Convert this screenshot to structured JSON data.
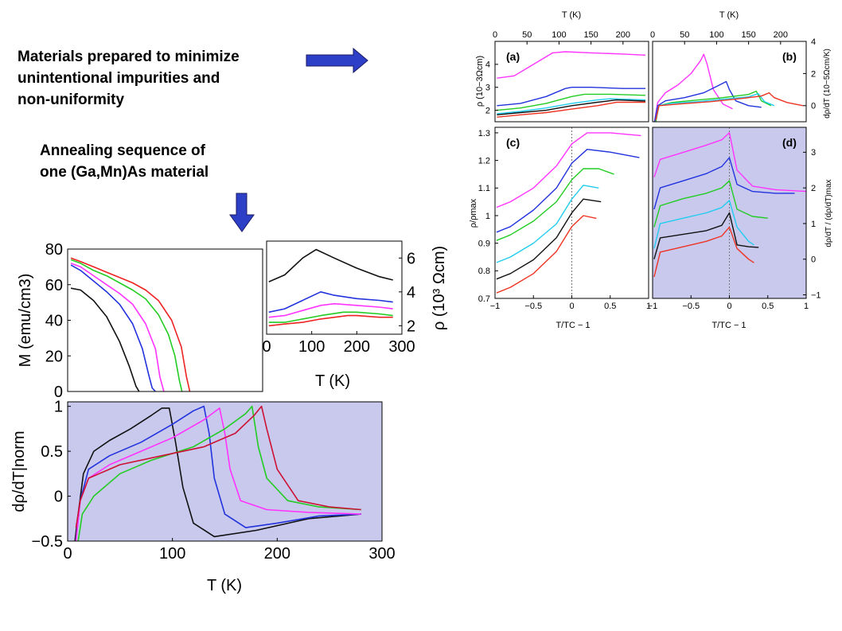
{
  "captions": {
    "top": [
      "Materials prepared to minimize",
      "unintentional impurities and",
      "non-uniformity"
    ],
    "middle": [
      "Annealing sequence of",
      "one (Ga,Mn)As material"
    ]
  },
  "colors": {
    "arrow": "#2e3fc7",
    "arrow_edge": "#1a1a66",
    "shade": "#c9c9ee"
  },
  "chart_data": [
    {
      "id": "magnetization",
      "type": "line",
      "ylabel": "M (emu/cm3)",
      "xlim": [
        0,
        300
      ],
      "ylim": [
        0,
        80
      ],
      "yticks": [
        "0",
        "20",
        "40",
        "60",
        "80"
      ],
      "series": [
        {
          "color": "#111111",
          "x": [
            5,
            20,
            40,
            60,
            80,
            95,
            105,
            110
          ],
          "y": [
            58,
            57,
            51,
            42,
            28,
            14,
            3,
            0
          ]
        },
        {
          "color": "#2233dd",
          "x": [
            5,
            20,
            40,
            60,
            80,
            100,
            115,
            125,
            130,
            135
          ],
          "y": [
            71,
            68,
            62,
            56,
            49,
            38,
            24,
            9,
            2,
            0
          ]
        },
        {
          "color": "#ff33ff",
          "x": [
            5,
            20,
            40,
            60,
            80,
            100,
            120,
            135,
            142,
            148
          ],
          "y": [
            72,
            70,
            65,
            60,
            55,
            49,
            38,
            24,
            8,
            0
          ]
        },
        {
          "color": "#22cc22",
          "x": [
            5,
            20,
            40,
            60,
            80,
            100,
            120,
            140,
            155,
            165,
            172,
            176
          ],
          "y": [
            74,
            72,
            68,
            65,
            61,
            57,
            52,
            43,
            32,
            20,
            6,
            0
          ]
        },
        {
          "color": "#ee2222",
          "x": [
            5,
            20,
            40,
            60,
            80,
            100,
            120,
            140,
            160,
            175,
            183,
            188
          ],
          "y": [
            75,
            73,
            70,
            67,
            64,
            61,
            57,
            51,
            40,
            25,
            8,
            0
          ]
        }
      ]
    },
    {
      "id": "inset-resistivity",
      "type": "line",
      "xlabel": "T (K)",
      "ylabel": "ρ (10³ Ωcm)",
      "xlim": [
        0,
        300
      ],
      "ylim": [
        1.5,
        7
      ],
      "xticks": [
        "0",
        "100",
        "200",
        "300"
      ],
      "yticks": [
        "2",
        "4",
        "6"
      ],
      "series": [
        {
          "color": "#111111",
          "x": [
            5,
            40,
            80,
            110,
            150,
            200,
            250,
            280
          ],
          "y": [
            4.6,
            5.0,
            6.0,
            6.5,
            6.0,
            5.4,
            4.9,
            4.7
          ]
        },
        {
          "color": "#2233dd",
          "x": [
            5,
            40,
            80,
            120,
            150,
            200,
            250,
            280
          ],
          "y": [
            2.8,
            3.0,
            3.5,
            4.0,
            3.8,
            3.6,
            3.5,
            3.4
          ]
        },
        {
          "color": "#ff33ff",
          "x": [
            5,
            40,
            80,
            120,
            150,
            200,
            250,
            280
          ],
          "y": [
            2.5,
            2.6,
            2.9,
            3.2,
            3.3,
            3.2,
            3.1,
            3.0
          ]
        },
        {
          "color": "#22cc22",
          "x": [
            5,
            40,
            80,
            120,
            170,
            200,
            250,
            280
          ],
          "y": [
            2.2,
            2.2,
            2.4,
            2.6,
            2.8,
            2.8,
            2.7,
            2.6
          ]
        },
        {
          "color": "#ee2222",
          "x": [
            5,
            40,
            80,
            120,
            180,
            200,
            250,
            280
          ],
          "y": [
            2.0,
            2.1,
            2.2,
            2.4,
            2.6,
            2.6,
            2.5,
            2.5
          ]
        }
      ]
    },
    {
      "id": "drho-dt-norm",
      "type": "line",
      "xlabel": "T (K)",
      "ylabel": "dρ/dT|norm",
      "xlim": [
        0,
        300
      ],
      "ylim": [
        -0.5,
        1.05
      ],
      "xticks": [
        "0",
        "100",
        "200",
        "300"
      ],
      "yticks": [
        "−0.5",
        "0",
        "0.5",
        "1"
      ],
      "series": [
        {
          "color": "#111111",
          "x": [
            7,
            10,
            15,
            25,
            40,
            60,
            80,
            90,
            97,
            103,
            110,
            120,
            140,
            180,
            230,
            280
          ],
          "y": [
            -0.5,
            -0.2,
            0.25,
            0.5,
            0.62,
            0.75,
            0.9,
            0.98,
            0.98,
            0.6,
            0.1,
            -0.3,
            -0.45,
            -0.38,
            -0.25,
            -0.2
          ]
        },
        {
          "color": "#2233dd",
          "x": [
            8,
            12,
            20,
            40,
            70,
            100,
            120,
            130,
            135,
            140,
            150,
            170,
            200,
            240,
            280
          ],
          "y": [
            -0.5,
            -0.05,
            0.3,
            0.45,
            0.6,
            0.8,
            0.95,
            1.0,
            0.7,
            0.2,
            -0.2,
            -0.35,
            -0.3,
            -0.22,
            -0.2
          ]
        },
        {
          "color": "#ff33ff",
          "x": [
            8,
            12,
            20,
            40,
            70,
            100,
            130,
            145,
            150,
            155,
            165,
            190,
            230,
            280
          ],
          "y": [
            -0.5,
            -0.05,
            0.2,
            0.35,
            0.5,
            0.65,
            0.85,
            0.98,
            0.7,
            0.3,
            -0.05,
            -0.15,
            -0.18,
            -0.2
          ]
        },
        {
          "color": "#22cc22",
          "x": [
            10,
            14,
            25,
            50,
            80,
            120,
            150,
            170,
            176,
            182,
            190,
            210,
            240,
            280
          ],
          "y": [
            -0.5,
            -0.2,
            0.0,
            0.25,
            0.4,
            0.55,
            0.75,
            0.92,
            1.0,
            0.55,
            0.2,
            -0.05,
            -0.12,
            -0.15
          ]
        },
        {
          "color": "#cc1133",
          "x": [
            8,
            12,
            20,
            50,
            90,
            130,
            160,
            178,
            185,
            190,
            200,
            220,
            250,
            280
          ],
          "y": [
            -0.35,
            -0.05,
            0.2,
            0.35,
            0.45,
            0.55,
            0.7,
            0.9,
            1.0,
            0.75,
            0.3,
            -0.05,
            -0.12,
            -0.15
          ]
        }
      ]
    },
    {
      "id": "panel-a",
      "type": "line",
      "panel_label": "(a)",
      "xlabel": "T (K)",
      "ylabel": "ρ (10−3Ωcm)",
      "xlim": [
        0,
        240
      ],
      "ylim": [
        1.5,
        5
      ],
      "xticks": [
        "0",
        "50",
        "100",
        "150",
        "200"
      ],
      "yticks": [
        "2",
        "3",
        "4"
      ],
      "series": [
        {
          "color": "#ff33ff",
          "x": [
            3,
            30,
            60,
            90,
            110,
            150,
            200,
            235
          ],
          "y": [
            3.4,
            3.5,
            4.0,
            4.5,
            4.55,
            4.5,
            4.45,
            4.4
          ]
        },
        {
          "color": "#2233dd",
          "x": [
            3,
            40,
            80,
            110,
            120,
            150,
            200,
            235
          ],
          "y": [
            2.2,
            2.3,
            2.6,
            2.95,
            3.0,
            3.0,
            2.95,
            2.95
          ]
        },
        {
          "color": "#22cc22",
          "x": [
            3,
            40,
            80,
            120,
            140,
            180,
            235
          ],
          "y": [
            2.0,
            2.1,
            2.3,
            2.6,
            2.7,
            2.7,
            2.65
          ]
        },
        {
          "color": "#22ccee",
          "x": [
            3,
            40,
            80,
            120,
            160,
            180,
            235
          ],
          "y": [
            1.85,
            1.95,
            2.1,
            2.3,
            2.45,
            2.5,
            2.45
          ]
        },
        {
          "color": "#111111",
          "x": [
            3,
            40,
            80,
            120,
            160,
            190,
            235
          ],
          "y": [
            1.8,
            1.9,
            2.0,
            2.2,
            2.35,
            2.45,
            2.4
          ]
        },
        {
          "color": "#ee3322",
          "x": [
            3,
            40,
            80,
            120,
            160,
            190,
            235
          ],
          "y": [
            1.7,
            1.8,
            1.9,
            2.05,
            2.2,
            2.35,
            2.35
          ]
        }
      ]
    },
    {
      "id": "panel-b",
      "type": "line",
      "panel_label": "(b)",
      "xlabel": "T (K)",
      "ylabel": "dρ/dT (10−5Ωcm/K)",
      "xlim": [
        0,
        240
      ],
      "ylim": [
        -1,
        4
      ],
      "xticks": [
        "0",
        "50",
        "100",
        "150",
        "200"
      ],
      "yticks": [
        "0",
        "2",
        "4"
      ],
      "series": [
        {
          "color": "#ff33ff",
          "x": [
            3,
            8,
            20,
            40,
            60,
            75,
            80,
            85,
            95,
            110,
            125
          ],
          "y": [
            -1,
            0.2,
            0.8,
            1.3,
            2.0,
            2.8,
            3.2,
            2.6,
            1.0,
            0.1,
            -0.2
          ]
        },
        {
          "color": "#2233dd",
          "x": [
            3,
            8,
            20,
            50,
            80,
            100,
            115,
            120,
            130,
            150,
            170
          ],
          "y": [
            -1,
            0.0,
            0.3,
            0.5,
            0.8,
            1.2,
            1.5,
            1.0,
            0.3,
            0.0,
            -0.1
          ]
        },
        {
          "color": "#22cc22",
          "x": [
            5,
            10,
            30,
            70,
            110,
            150,
            162,
            170,
            185
          ],
          "y": [
            -1,
            0.0,
            0.2,
            0.35,
            0.5,
            0.7,
            0.9,
            0.3,
            0.0
          ]
        },
        {
          "color": "#22ccee",
          "x": [
            5,
            10,
            30,
            70,
            110,
            150,
            165,
            175,
            190
          ],
          "y": [
            -0.9,
            0.0,
            0.15,
            0.25,
            0.4,
            0.55,
            0.75,
            0.25,
            0.0
          ]
        },
        {
          "color": "#ee3322",
          "x": [
            5,
            10,
            40,
            90,
            140,
            170,
            182,
            190,
            210,
            235
          ],
          "y": [
            -0.9,
            0.0,
            0.1,
            0.25,
            0.45,
            0.6,
            0.8,
            0.5,
            0.2,
            0.0
          ]
        }
      ]
    },
    {
      "id": "panel-c",
      "type": "line",
      "panel_label": "(c)",
      "xlabel": "T/TC − 1",
      "ylabel": "ρ/ρmax",
      "xlim": [
        -1,
        1
      ],
      "ylim": [
        0.7,
        1.32
      ],
      "xticks": [
        "−1",
        "−0.5",
        "0",
        "0.5",
        "1"
      ],
      "yticks": [
        "0.7",
        "0.8",
        "0.9",
        "1",
        "1.1",
        "1.2",
        "1.3"
      ],
      "series": [
        {
          "color": "#ff33ff",
          "x": [
            -0.98,
            -0.8,
            -0.5,
            -0.2,
            0.0,
            0.2,
            0.5,
            0.9
          ],
          "y": [
            1.03,
            1.05,
            1.1,
            1.18,
            1.26,
            1.3,
            1.3,
            1.29
          ]
        },
        {
          "color": "#2233dd",
          "x": [
            -0.98,
            -0.8,
            -0.5,
            -0.2,
            0.0,
            0.2,
            0.5,
            0.88
          ],
          "y": [
            0.94,
            0.96,
            1.02,
            1.1,
            1.19,
            1.24,
            1.23,
            1.21
          ]
        },
        {
          "color": "#22cc22",
          "x": [
            -0.98,
            -0.8,
            -0.5,
            -0.2,
            0.0,
            0.15,
            0.35,
            0.55
          ],
          "y": [
            0.91,
            0.93,
            0.98,
            1.05,
            1.13,
            1.17,
            1.17,
            1.15
          ]
        },
        {
          "color": "#22ccee",
          "x": [
            -0.98,
            -0.8,
            -0.5,
            -0.2,
            0.0,
            0.15,
            0.35
          ],
          "y": [
            0.83,
            0.85,
            0.9,
            0.97,
            1.06,
            1.11,
            1.1
          ]
        },
        {
          "color": "#111111",
          "x": [
            -0.98,
            -0.8,
            -0.5,
            -0.2,
            0.0,
            0.15,
            0.38
          ],
          "y": [
            0.77,
            0.79,
            0.84,
            0.92,
            1.01,
            1.06,
            1.05
          ]
        },
        {
          "color": "#ee3322",
          "x": [
            -0.98,
            -0.8,
            -0.5,
            -0.2,
            0.0,
            0.15,
            0.32
          ],
          "y": [
            0.72,
            0.74,
            0.79,
            0.87,
            0.96,
            1.0,
            0.99
          ]
        }
      ]
    },
    {
      "id": "panel-d",
      "type": "line",
      "panel_label": "(d)",
      "xlabel": "T/TC − 1",
      "ylabel": "dρ/dT / (dρ/dT)max",
      "xlim": [
        -1,
        1
      ],
      "ylim": [
        -1.1,
        3.7
      ],
      "xticks": [
        "−1",
        "−0.5",
        "0",
        "0.5",
        "1"
      ],
      "yticks": [
        "−1",
        "0",
        "1",
        "2",
        "3"
      ],
      "series": [
        {
          "color": "#ff33ff",
          "x": [
            -0.98,
            -0.9,
            -0.6,
            -0.3,
            -0.1,
            0.0,
            0.1,
            0.3,
            0.6,
            1.0
          ],
          "y": [
            2.3,
            2.8,
            3.0,
            3.2,
            3.35,
            3.55,
            2.5,
            2.05,
            1.95,
            1.9
          ]
        },
        {
          "color": "#2233dd",
          "x": [
            -0.98,
            -0.9,
            -0.6,
            -0.3,
            -0.1,
            0.0,
            0.1,
            0.3,
            0.6,
            0.85
          ],
          "y": [
            1.4,
            2.0,
            2.2,
            2.4,
            2.6,
            2.85,
            2.1,
            1.9,
            1.85,
            1.85
          ]
        },
        {
          "color": "#22cc22",
          "x": [
            -0.98,
            -0.9,
            -0.6,
            -0.3,
            -0.1,
            0.0,
            0.1,
            0.3,
            0.5
          ],
          "y": [
            0.9,
            1.5,
            1.7,
            1.85,
            2.0,
            2.2,
            1.4,
            1.2,
            1.15
          ]
        },
        {
          "color": "#22ccee",
          "x": [
            -0.98,
            -0.9,
            -0.6,
            -0.3,
            -0.1,
            0.0,
            0.1,
            0.25,
            0.32
          ],
          "y": [
            0.3,
            1.0,
            1.15,
            1.3,
            1.45,
            1.65,
            0.9,
            0.5,
            0.4
          ]
        },
        {
          "color": "#111111",
          "x": [
            -0.98,
            -0.9,
            -0.6,
            -0.3,
            -0.1,
            0.0,
            0.1,
            0.25,
            0.38
          ],
          "y": [
            0.0,
            0.6,
            0.7,
            0.8,
            0.95,
            1.3,
            0.4,
            0.35,
            0.33
          ]
        },
        {
          "color": "#ee3322",
          "x": [
            -0.98,
            -0.9,
            -0.6,
            -0.3,
            -0.1,
            0.0,
            0.1,
            0.25,
            0.32
          ],
          "y": [
            -0.5,
            0.2,
            0.35,
            0.5,
            0.65,
            0.9,
            0.3,
            0.0,
            -0.1
          ]
        }
      ]
    }
  ]
}
